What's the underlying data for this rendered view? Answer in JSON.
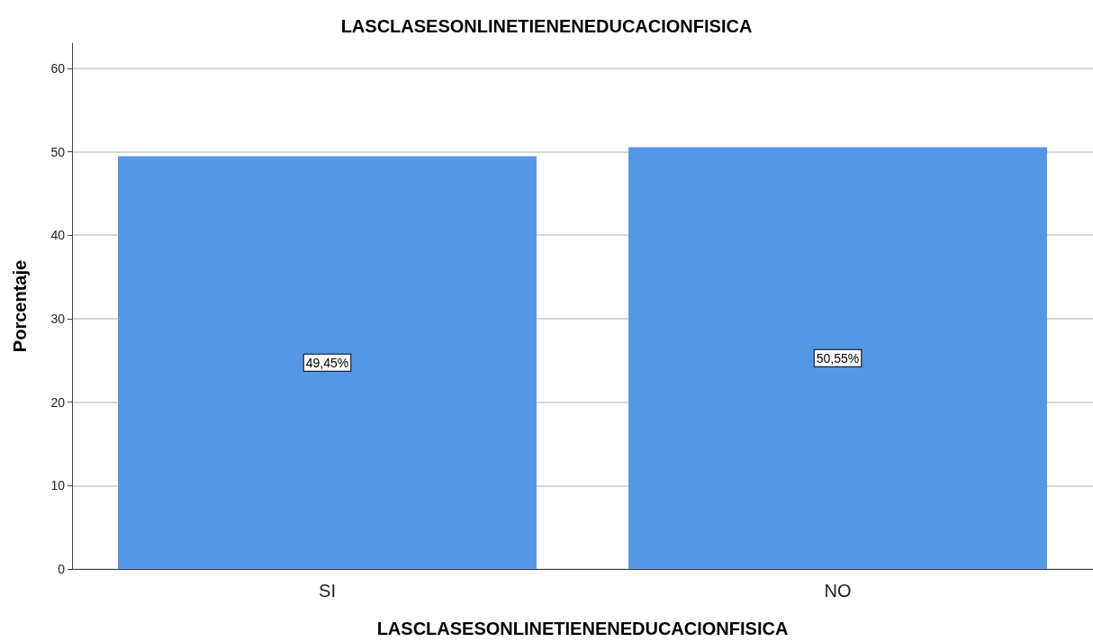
{
  "chart_data": {
    "type": "bar",
    "title": "LASCLASESONLINETIENENEDUCACIONFISICA",
    "xlabel": "LASCLASESONLINETIENENEDUCACIONFISICA",
    "ylabel": "Porcentaje",
    "categories": [
      "SI",
      "NO"
    ],
    "values": [
      49.45,
      50.55
    ],
    "value_labels": [
      "49,45%",
      "50,55%"
    ],
    "color": "#5596e5",
    "ylim": [
      0,
      63
    ],
    "yticks": [
      0,
      10,
      20,
      30,
      40,
      50,
      60
    ],
    "grid": "y"
  }
}
